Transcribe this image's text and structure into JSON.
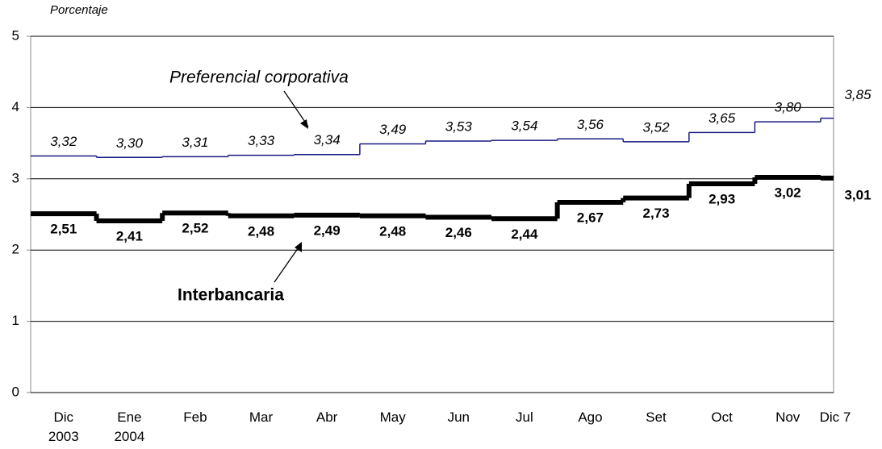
{
  "chart_data": {
    "type": "step",
    "y_label": "Porcentaje",
    "categories": [
      "Dic 2003",
      "Ene 2004",
      "Feb",
      "Mar",
      "Abr",
      "May",
      "Jun",
      "Jul",
      "Ago",
      "Set",
      "Oct",
      "Nov",
      "Dic 7"
    ],
    "series": [
      {
        "name": "Preferencial corporativa",
        "color": "#1a1a80",
        "values": [
          3.32,
          3.3,
          3.31,
          3.33,
          3.34,
          3.49,
          3.53,
          3.54,
          3.56,
          3.52,
          3.65,
          3.8,
          3.85
        ],
        "value_labels": [
          "3,32",
          "3,30",
          "3,31",
          "3,33",
          "3,34",
          "3,49",
          "3,53",
          "3,54",
          "3,56",
          "3,52",
          "3,65",
          "3,80",
          "3,85"
        ]
      },
      {
        "name": "Interbancaria",
        "color": "#000000",
        "values": [
          2.51,
          2.41,
          2.52,
          2.48,
          2.49,
          2.48,
          2.46,
          2.44,
          2.67,
          2.73,
          2.93,
          3.02,
          3.01
        ],
        "value_labels": [
          "2,51",
          "2,41",
          "2,52",
          "2,48",
          "2,49",
          "2,48",
          "2,46",
          "2,44",
          "2,67",
          "2,73",
          "2,93",
          "3,02",
          "3,01"
        ]
      }
    ],
    "ylim": [
      0,
      5
    ],
    "yticks": [
      0,
      1,
      2,
      3,
      4,
      5
    ],
    "grid": true
  }
}
